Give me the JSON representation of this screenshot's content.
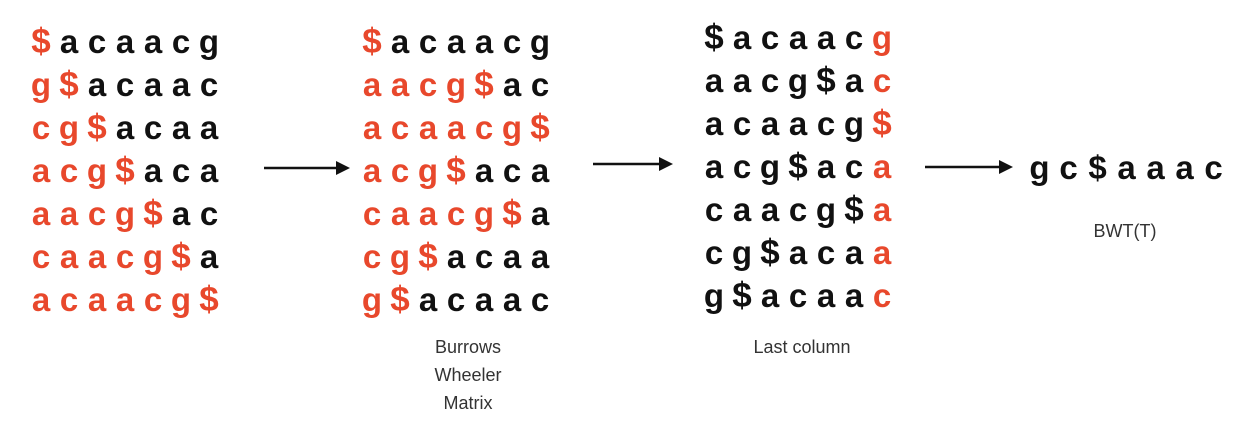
{
  "colors": {
    "red": "#e8482c",
    "black": "#111111",
    "caption": "#333333"
  },
  "rotations": {
    "rows": [
      "$acaacg",
      "g$acaac",
      "cg$acaa",
      "acg$aca",
      "aacg$ac",
      "caacg$a",
      "acaacg$"
    ],
    "red_counts": [
      1,
      2,
      3,
      4,
      5,
      6,
      7
    ]
  },
  "bw_matrix": {
    "rows": [
      "$acaacg",
      "aacg$ac",
      "acaacg$",
      "acg$aca",
      "caacg$a",
      "cg$acaa",
      "g$acaac"
    ],
    "red_counts": [
      1,
      5,
      7,
      4,
      6,
      3,
      2
    ],
    "caption": [
      "Burrows",
      "Wheeler",
      "Matrix"
    ]
  },
  "last_column": {
    "rows": [
      "$acaacg",
      "aacg$ac",
      "acaacg$",
      "acg$aca",
      "caacg$a",
      "cg$acaa",
      "g$acaac"
    ],
    "caption": [
      "Last column"
    ]
  },
  "bwt": {
    "chars": [
      "g",
      "c",
      "$",
      "a",
      "a",
      "a",
      "c"
    ],
    "label": "BWT(T)"
  }
}
